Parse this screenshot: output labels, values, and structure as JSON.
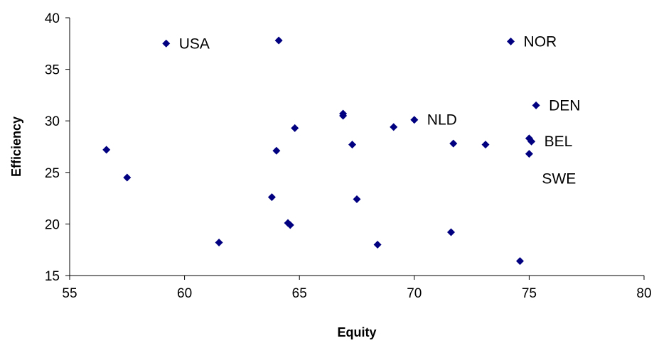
{
  "chart_data": {
    "type": "scatter",
    "title": "",
    "xlabel": "Equity",
    "ylabel": "Efficiency",
    "xlim": [
      55,
      80
    ],
    "ylim": [
      15,
      40
    ],
    "xticks": [
      "55",
      "60",
      "65",
      "70",
      "75",
      "80"
    ],
    "yticks": [
      "15",
      "20",
      "25",
      "30",
      "35",
      "40"
    ],
    "grid": false,
    "legend": "none",
    "marker": "diamond",
    "marker_color": "#000080",
    "points": [
      {
        "x": 59.2,
        "y": 37.5,
        "label": "USA"
      },
      {
        "x": 64.1,
        "y": 37.8
      },
      {
        "x": 74.2,
        "y": 37.7,
        "label": "NOR"
      },
      {
        "x": 75.3,
        "y": 31.5,
        "label": "DEN"
      },
      {
        "x": 66.9,
        "y": 30.7
      },
      {
        "x": 66.9,
        "y": 30.5
      },
      {
        "x": 70.0,
        "y": 30.1,
        "label": "NLD"
      },
      {
        "x": 64.8,
        "y": 29.3
      },
      {
        "x": 69.1,
        "y": 29.4
      },
      {
        "x": 75.0,
        "y": 28.3
      },
      {
        "x": 75.1,
        "y": 28.0,
        "label": "BEL"
      },
      {
        "x": 71.7,
        "y": 27.8
      },
      {
        "x": 73.1,
        "y": 27.7
      },
      {
        "x": 67.3,
        "y": 27.7
      },
      {
        "x": 56.6,
        "y": 27.2
      },
      {
        "x": 64.0,
        "y": 27.1
      },
      {
        "x": 75.0,
        "y": 26.8
      },
      {
        "x": 57.5,
        "y": 24.5
      },
      {
        "x": 63.8,
        "y": 22.6
      },
      {
        "x": 67.5,
        "y": 22.4
      },
      {
        "x": 64.5,
        "y": 20.1
      },
      {
        "x": 64.6,
        "y": 19.9
      },
      {
        "x": 71.6,
        "y": 19.2
      },
      {
        "x": 61.5,
        "y": 18.2
      },
      {
        "x": 68.4,
        "y": 18.0
      },
      {
        "x": 74.6,
        "y": 16.4
      }
    ],
    "annotations": [
      "SWE"
    ]
  }
}
